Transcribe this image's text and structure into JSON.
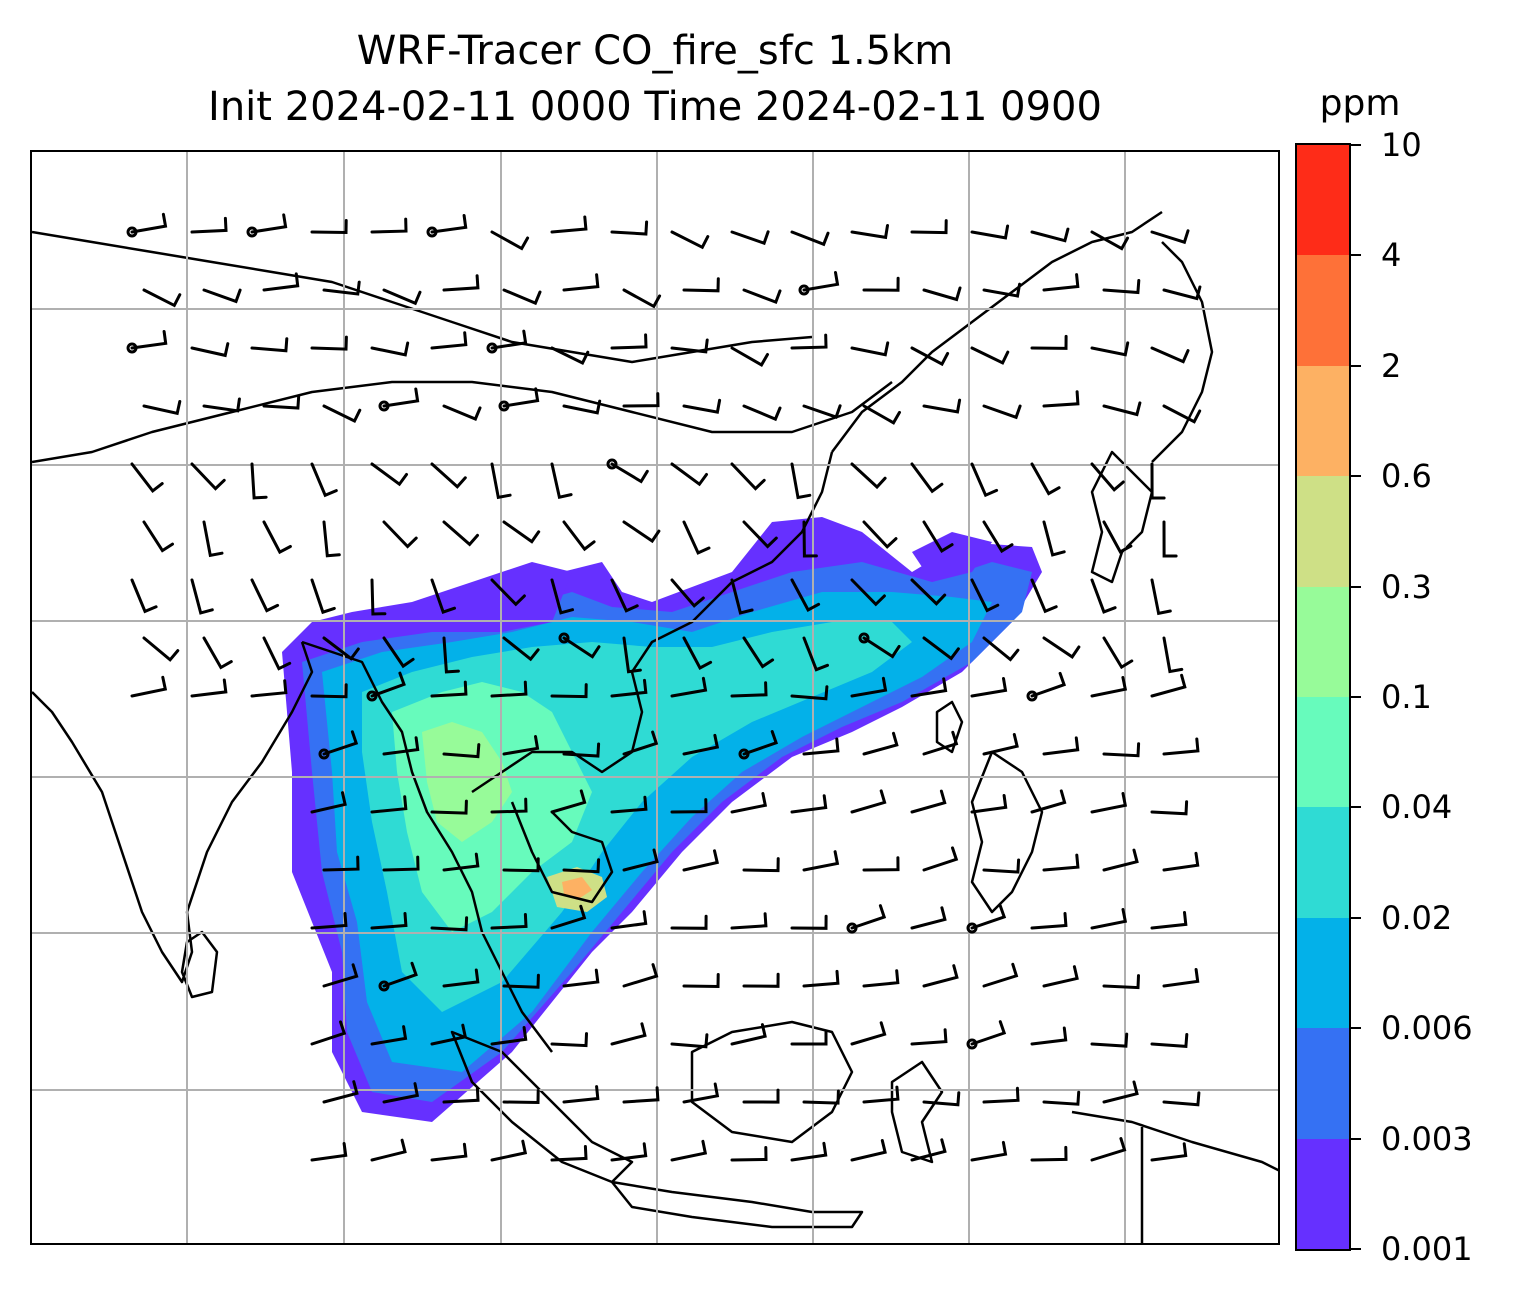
{
  "title": {
    "line1": "WRF-Tracer CO_fire_sfc 1.5km",
    "line2": "Init 2024-02-11 0000 Time 2024-02-11 0900"
  },
  "colorbar": {
    "unit": "ppm",
    "labels": [
      "0.001",
      "0.003",
      "0.006",
      "0.02",
      "0.04",
      "0.1",
      "0.3",
      "0.6",
      "2",
      "4",
      "10"
    ],
    "colors": [
      "#6630ff",
      "#3571f3",
      "#03b1e9",
      "#2fdbd4",
      "#67fbbc",
      "#97fb99",
      "#cee086",
      "#fdb163",
      "#fe7138",
      "#fe2c18"
    ]
  },
  "map": {
    "gridlines": "on",
    "coastline_color": "#000000",
    "barb_color": "#000000"
  }
}
